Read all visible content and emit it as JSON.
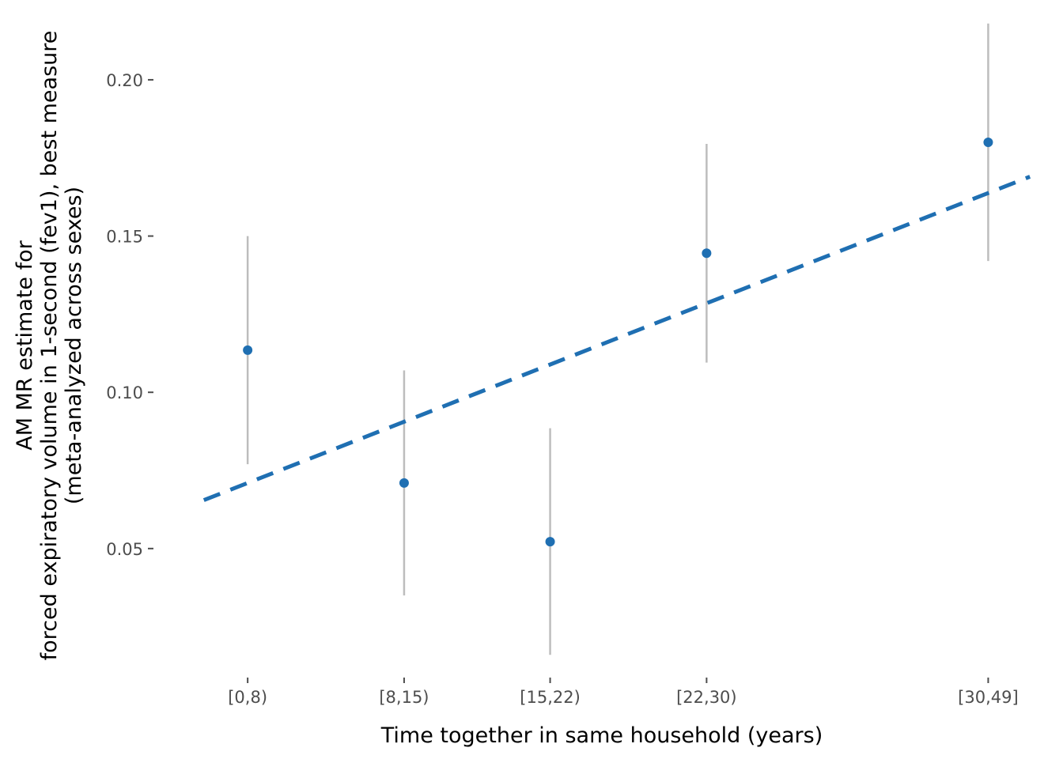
{
  "chart_data": {
    "type": "scatter",
    "xlabel": "Time together in same household (years)",
    "ylabel_lines": [
      "AM MR estimate for",
      "forced expiratory volume in 1-second (fev1), best measure",
      "(meta-analyzed across sexes)"
    ],
    "categories": [
      "[0,8)",
      "[8,15)",
      "[15,22)",
      "[22,30)",
      "[30,49]"
    ],
    "x_positions": [
      4,
      11.5,
      18.5,
      26,
      39.5
    ],
    "points": [
      {
        "category": "[0,8)",
        "estimate": 0.1135,
        "lower": 0.077,
        "upper": 0.15
      },
      {
        "category": "[8,15)",
        "estimate": 0.071,
        "lower": 0.035,
        "upper": 0.107
      },
      {
        "category": "[15,22)",
        "estimate": 0.0522,
        "lower": 0.016,
        "upper": 0.0885
      },
      {
        "category": "[22,30)",
        "estimate": 0.1445,
        "lower": 0.1095,
        "upper": 0.1795
      },
      {
        "category": "[30,49]",
        "estimate": 0.18,
        "lower": 0.142,
        "upper": 0.218
      }
    ],
    "trend_line": {
      "x_start": 1.9,
      "y_start": 0.0655,
      "x_end": 41.5,
      "y_end": 0.169,
      "style": "dashed"
    },
    "yticks": [
      0.05,
      0.1,
      0.15,
      0.2
    ],
    "ytick_labels": [
      "0.05",
      "0.10",
      "0.15",
      "0.20"
    ],
    "xlim": [
      -0.1,
      42.1
    ],
    "ylim": [
      0.0115,
      0.2225
    ],
    "grid": false,
    "colors": {
      "point": "#1f6fb2",
      "errorbar": "#bdbdbd",
      "trend": "#1f6fb2",
      "tick": "#4d4d4d"
    }
  }
}
